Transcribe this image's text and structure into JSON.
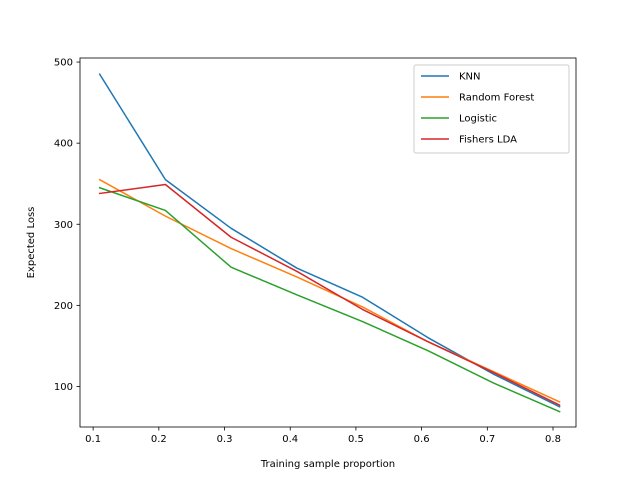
{
  "chart_data": {
    "type": "line",
    "title": "",
    "xlabel": "Training sample proportion",
    "ylabel": "Expected Loss",
    "xlim": [
      0.08,
      0.835
    ],
    "ylim": [
      50,
      505
    ],
    "xticks": [
      0.1,
      0.2,
      0.3,
      0.4,
      0.5,
      0.6,
      0.7,
      0.8
    ],
    "xtick_labels": [
      "0.1",
      "0.2",
      "0.3",
      "0.4",
      "0.5",
      "0.6",
      "0.7",
      "0.8"
    ],
    "yticks": [
      100,
      200,
      300,
      400,
      500
    ],
    "ytick_labels": [
      "100",
      "200",
      "300",
      "400",
      "500"
    ],
    "grid": false,
    "legend_position": "top-right",
    "x": [
      0.11,
      0.21,
      0.31,
      0.41,
      0.51,
      0.61,
      0.71,
      0.81
    ],
    "series": [
      {
        "name": "KNN",
        "color": "#1f77b4",
        "values": [
          485,
          355,
          295,
          246,
          210,
          160,
          115,
          75
        ]
      },
      {
        "name": "Random Forest",
        "color": "#ff7f0e",
        "values": [
          355,
          310,
          270,
          235,
          198,
          155,
          118,
          81
        ]
      },
      {
        "name": "Logistic",
        "color": "#2ca02c",
        "values": [
          345,
          317,
          247,
          213,
          180,
          144,
          104,
          69
        ]
      },
      {
        "name": "Fishers LDA",
        "color": "#d62728",
        "values": [
          338,
          349,
          284,
          242,
          195,
          155,
          117,
          77
        ]
      }
    ]
  }
}
